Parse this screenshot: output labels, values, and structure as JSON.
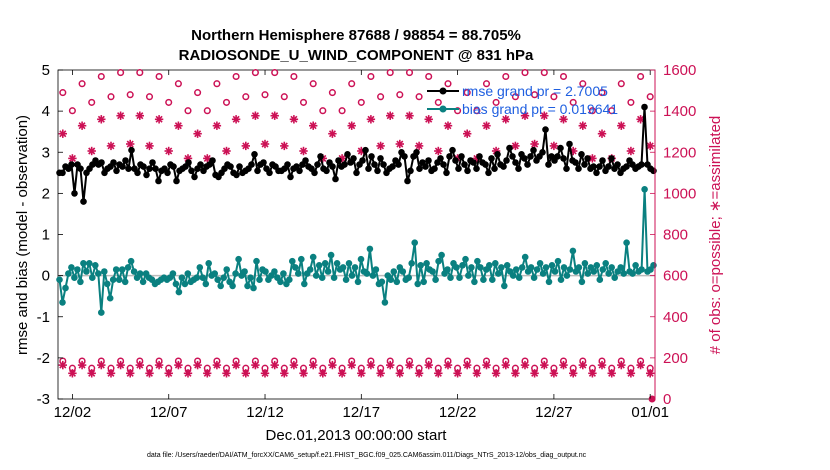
{
  "chart_data": {
    "type": "line",
    "title": "Northern Hemisphere 87688 / 98854 = 88.705%",
    "subtitle": "RADIOSONDE_U_WIND_COMPONENT @ 831 hPa",
    "xlabel": "Dec.01,2013 00:00:00 start",
    "ylabel": "rmse and bias (model - observation)",
    "y2label": "# of obs: o=possible; ∗=assimilated",
    "footnote": "data file: /Users/raeder/DAI/ATM_forcXX/CAM6_setup/f.e21.FHIST_BGC.f09_025.CAM6assim.011/Diags_NTrS_2013-12/obs_diag_output.nc",
    "x_ticks": [
      "12/02",
      "12/07",
      "12/12",
      "12/17",
      "12/22",
      "12/27",
      "01/01"
    ],
    "x_tick_days": [
      1,
      6,
      11,
      16,
      21,
      26,
      31
    ],
    "xlim": [
      0.25,
      31.25
    ],
    "ylim": [
      -3,
      5
    ],
    "y_ticks": [
      "-3",
      "-2",
      "-1",
      "0",
      "1",
      "2",
      "3",
      "4",
      "5"
    ],
    "y2lim": [
      0,
      1600
    ],
    "y2_ticks": [
      "0",
      "200",
      "400",
      "600",
      "800",
      "1000",
      "1200",
      "1400",
      "1600"
    ],
    "colors": {
      "rmse": "#000000",
      "bias": "#0a8080",
      "obs": "#cc1155",
      "legend_text": "#1f5fe0",
      "zero_line": "#bbbbbb"
    },
    "legend": [
      {
        "name": "rmse grand pr = 2.7005",
        "series": "rmse"
      },
      {
        "name": "bias grand pr = 0.019641",
        "series": "bias"
      }
    ],
    "series": [
      {
        "name": "rmse",
        "axis": "left",
        "values": [
          2.5,
          2.5,
          2.65,
          2.6,
          2.7,
          2.0,
          2.7,
          2.6,
          1.8,
          2.5,
          2.6,
          2.7,
          2.8,
          2.7,
          2.75,
          2.5,
          2.6,
          2.65,
          2.75,
          2.55,
          2.7,
          2.65,
          2.8,
          2.6,
          3.05,
          2.6,
          2.5,
          2.7,
          2.65,
          2.45,
          2.6,
          2.75,
          2.6,
          2.3,
          2.55,
          2.6,
          2.5,
          2.7,
          2.65,
          2.3,
          2.55,
          2.6,
          2.65,
          2.75,
          2.55,
          2.4,
          2.6,
          2.7,
          2.55,
          2.65,
          2.7,
          2.8,
          2.45,
          2.4,
          2.5,
          2.6,
          2.7,
          2.65,
          2.5,
          2.45,
          2.65,
          2.5,
          2.55,
          2.6,
          2.7,
          2.95,
          2.55,
          2.7,
          2.75,
          2.6,
          2.5,
          2.7,
          2.65,
          2.55,
          2.55,
          2.6,
          2.7,
          2.4,
          2.6,
          2.65,
          2.55,
          2.7,
          2.8,
          2.65,
          2.6,
          2.5,
          2.7,
          2.9,
          2.6,
          2.55,
          2.75,
          2.65,
          2.35,
          2.8,
          2.65,
          2.7,
          2.95,
          2.75,
          2.85,
          2.5,
          2.7,
          2.8,
          3.05,
          2.6,
          2.9,
          2.7,
          2.55,
          2.85,
          2.7,
          2.5,
          2.6,
          2.65,
          2.8,
          2.7,
          3.0,
          2.9,
          2.3,
          2.55,
          2.9,
          3.0,
          2.6,
          2.75,
          2.65,
          2.8,
          2.55,
          2.6,
          2.75,
          2.85,
          2.7,
          2.5,
          2.9,
          3.05,
          2.8,
          2.6,
          2.9,
          2.7,
          2.55,
          2.8,
          2.75,
          2.6,
          2.9,
          2.75,
          2.7,
          2.5,
          2.85,
          2.6,
          2.95,
          2.7,
          2.65,
          2.8,
          3.1,
          2.9,
          2.75,
          2.6,
          2.95,
          2.85,
          2.7,
          2.9,
          3.05,
          2.8,
          2.9,
          3.0,
          3.55,
          2.7,
          2.9,
          2.8,
          2.9,
          3.1,
          2.85,
          2.6,
          3.2,
          2.8,
          2.75,
          2.6,
          2.95,
          2.7,
          2.85,
          2.6,
          2.65,
          2.5,
          2.65,
          2.8,
          2.55,
          2.65,
          2.85,
          2.6,
          2.7,
          2.5,
          2.6,
          2.65,
          2.8,
          2.7,
          2.6,
          2.65,
          2.7,
          4.1,
          2.7,
          2.6,
          2.55
        ]
      },
      {
        "name": "bias",
        "axis": "left",
        "values": [
          -0.1,
          -0.65,
          -0.3,
          0.05,
          0.2,
          -0.05,
          0.15,
          -0.15,
          0.3,
          0.1,
          0.3,
          -0.05,
          0.25,
          0.05,
          -0.9,
          0.1,
          -0.2,
          -0.55,
          -0.1,
          0.15,
          -0.1,
          0.15,
          -0.15,
          0.2,
          0.35,
          0.1,
          -0.05,
          0.05,
          -0.15,
          0.05,
          -0.05,
          -0.1,
          -0.2,
          -0.15,
          -0.1,
          -0.05,
          -0.1,
          -0.05,
          0.05,
          -0.2,
          -0.4,
          -0.05,
          -0.2,
          0.05,
          -0.15,
          -0.1,
          -0.05,
          0.2,
          -0.05,
          -0.2,
          0.3,
          0.0,
          0.05,
          -0.1,
          -0.25,
          -0.05,
          0.15,
          -0.15,
          -0.25,
          0.05,
          0.4,
          0.0,
          0.1,
          -0.25,
          -0.05,
          -0.3,
          0.35,
          -0.1,
          0.15,
          0.1,
          -0.1,
          0.0,
          0.1,
          -0.05,
          -0.15,
          0.05,
          -0.2,
          -0.1,
          0.35,
          0.2,
          0.05,
          0.4,
          -0.2,
          0.05,
          0.15,
          0.45,
          0.0,
          0.25,
          -0.05,
          0.3,
          0.1,
          0.5,
          -0.05,
          0.3,
          0.15,
          0.2,
          -0.1,
          0.3,
          0.0,
          0.2,
          -0.15,
          0.4,
          0.1,
          0.05,
          0.65,
          0.0,
          0.15,
          -0.2,
          -0.15,
          -0.65,
          0.0,
          -0.1,
          0.1,
          -0.15,
          0.2,
          0.1,
          -0.1,
          -0.05,
          0.3,
          0.8,
          -0.2,
          0.25,
          -0.15,
          0.3,
          0.15,
          0.1,
          -0.1,
          0.35,
          0.5,
          0.05,
          0.15,
          -0.05,
          0.3,
          0.2,
          -0.05,
          0.25,
          0.4,
          0.0,
          0.2,
          -0.15,
          0.35,
          0.2,
          -0.1,
          0.15,
          0.25,
          -0.1,
          0.3,
          0.05,
          0.2,
          -0.25,
          0.25,
          0.1,
          0.0,
          0.15,
          -0.05,
          0.2,
          0.45,
          0.1,
          0.2,
          -0.05,
          0.15,
          0.3,
          0.05,
          0.2,
          -0.15,
          0.25,
          0.1,
          0.35,
          -0.1,
          0.2,
          0.0,
          0.15,
          0.6,
          0.1,
          0.2,
          -0.15,
          0.3,
          0.05,
          0.2,
          0.1,
          0.25,
          -0.1,
          0.15,
          0.3,
          0.05,
          0.2,
          -0.05,
          0.1,
          0.2,
          0.05,
          0.8,
          0.1,
          0.05,
          0.25,
          0.1,
          0.15,
          2.1,
          0.1,
          0.15,
          0.25
        ]
      },
      {
        "name": "obs possible",
        "axis": "right",
        "marker": "circle",
        "pattern": {
          "trough_00z": 1490,
          "peak_00z": 1590,
          "trough_12z": 1380,
          "peak_12z": 1480,
          "low_00z": 165,
          "low_12z": 130
        }
      },
      {
        "name": "obs assimilated",
        "axis": "right",
        "marker": "asterisk",
        "pattern": {
          "trough_00z": 1290,
          "peak_00z": 1380,
          "trough_12z": 1150,
          "peak_12z": 1240,
          "low_00z": 145,
          "low_12z": 105
        }
      }
    ]
  }
}
